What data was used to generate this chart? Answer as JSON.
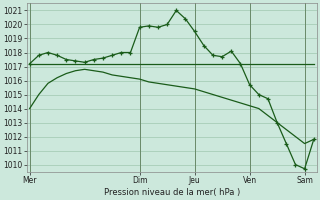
{
  "background_color": "#cce8dc",
  "grid_color": "#a8cdb8",
  "line_color_main": "#1a5c1a",
  "line_color_flat": "#2a7a2a",
  "title": "Pression niveau de la mer( hPa )",
  "ylim": [
    1009.5,
    1021.5
  ],
  "yticks": [
    1010,
    1011,
    1012,
    1013,
    1014,
    1015,
    1016,
    1017,
    1018,
    1019,
    1020,
    1021
  ],
  "x_day_labels": [
    "Mer",
    "Dim",
    "Jeu",
    "Ven",
    "Sam"
  ],
  "x_day_positions": [
    0,
    12,
    18,
    24,
    30
  ],
  "xlim": [
    -0.3,
    31.3
  ],
  "series1_x": [
    0,
    1,
    2,
    3,
    4,
    5,
    6,
    7,
    8,
    9,
    10,
    11,
    12,
    13,
    14,
    15,
    16,
    17,
    18,
    19,
    20,
    21,
    22,
    23,
    24,
    25,
    26,
    27,
    28,
    29,
    30,
    31
  ],
  "series1_y": [
    1017.2,
    1017.8,
    1018.0,
    1017.8,
    1017.5,
    1017.4,
    1017.3,
    1017.5,
    1017.6,
    1017.8,
    1018.0,
    1018.0,
    1019.8,
    1019.9,
    1019.8,
    1020.0,
    1021.0,
    1020.4,
    1019.5,
    1018.5,
    1017.8,
    1017.7,
    1018.1,
    1017.2,
    1015.7,
    1015.0,
    1014.7,
    1013.0,
    1011.5,
    1010.0,
    1009.7,
    1011.8
  ],
  "series2_x": [
    0,
    31
  ],
  "series2_y": [
    1017.2,
    1017.2
  ],
  "series3_x": [
    0,
    1,
    2,
    3,
    4,
    5,
    6,
    7,
    8,
    9,
    10,
    11,
    12,
    13,
    14,
    15,
    16,
    17,
    18,
    19,
    20,
    21,
    22,
    23,
    24,
    25,
    26,
    27,
    28,
    29,
    30,
    31
  ],
  "series3_y": [
    1014.0,
    1015.0,
    1015.8,
    1016.2,
    1016.5,
    1016.7,
    1016.8,
    1016.7,
    1016.6,
    1016.4,
    1016.3,
    1016.2,
    1016.1,
    1015.9,
    1015.8,
    1015.7,
    1015.6,
    1015.5,
    1015.4,
    1015.2,
    1015.0,
    1014.8,
    1014.6,
    1014.4,
    1014.2,
    1014.0,
    1013.5,
    1013.0,
    1012.5,
    1012.0,
    1011.5,
    1011.8
  ],
  "vline_positions": [
    0,
    12,
    18,
    24,
    30
  ]
}
